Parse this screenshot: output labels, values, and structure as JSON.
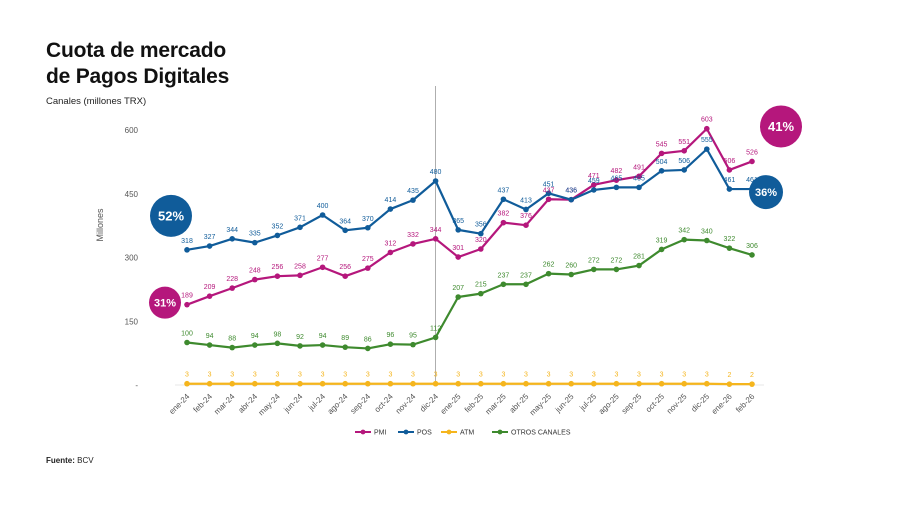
{
  "title": "Cuota de mercado\nde Pagos Digitales",
  "subtitle": "Canales (millones TRX)",
  "source_label": "Fuente:",
  "source_value": "BCV",
  "chart_data": {
    "type": "line",
    "title": "Cuota de mercado de Pagos Digitales",
    "ylabel": "Millones",
    "xlabel": "",
    "ylim": [
      0,
      600
    ],
    "yticks": [
      {
        "value": 0,
        "label": "-"
      },
      {
        "value": 150,
        "label": "150"
      },
      {
        "value": 300,
        "label": "300"
      },
      {
        "value": 450,
        "label": "450"
      },
      {
        "value": 600,
        "label": "600"
      }
    ],
    "grid": false,
    "legend_position": "bottom",
    "categories": [
      "ene-24",
      "feb-24",
      "mar-24",
      "abr-24",
      "may-24",
      "jun-24",
      "jul-24",
      "ago-24",
      "sep-24",
      "oct-24",
      "nov-24",
      "dic-24",
      "ene-25",
      "feb-25",
      "mar-25",
      "abr-25",
      "may-25",
      "jun-25",
      "jul-25",
      "ago-25",
      "sep-25",
      "oct-25",
      "nov-25",
      "dic-25",
      "ene-26",
      "feb-26"
    ],
    "divider_after": "dic-24",
    "series": [
      {
        "name": "PMI",
        "color": "#b5177c",
        "values": [
          189,
          209,
          228,
          248,
          256,
          258,
          277,
          256,
          275,
          312,
          332,
          344,
          301,
          320,
          382,
          376,
          437,
          436,
          471,
          482,
          491,
          545,
          551,
          603,
          506,
          526
        ]
      },
      {
        "name": "POS",
        "color": "#105c9a",
        "values": [
          318,
          327,
          344,
          335,
          352,
          371,
          400,
          364,
          370,
          414,
          435,
          480,
          365,
          356,
          437,
          413,
          451,
          436,
          459,
          465,
          465,
          504,
          506,
          555,
          461,
          461
        ]
      },
      {
        "name": "ATM",
        "color": "#f5b51d",
        "values": [
          3,
          3,
          3,
          3,
          3,
          3,
          3,
          3,
          3,
          3,
          3,
          3,
          3,
          3,
          3,
          3,
          3,
          3,
          3,
          3,
          3,
          3,
          3,
          3,
          2,
          2
        ]
      },
      {
        "name": "OTROS CANALES",
        "color": "#3e8a2e",
        "values": [
          100,
          94,
          88,
          94,
          98,
          92,
          94,
          89,
          86,
          96,
          95,
          112,
          207,
          215,
          237,
          237,
          262,
          260,
          272,
          272,
          281,
          319,
          342,
          340,
          322,
          306
        ]
      }
    ],
    "callouts": [
      {
        "series": "POS",
        "side": "start",
        "text": "52%",
        "color": "#105c9a"
      },
      {
        "series": "PMI",
        "side": "start",
        "text": "31%",
        "color": "#b5177c"
      },
      {
        "series": "PMI",
        "side": "end",
        "text": "41%",
        "color": "#b5177c"
      },
      {
        "series": "POS",
        "side": "end",
        "text": "36%",
        "color": "#105c9a"
      }
    ]
  }
}
